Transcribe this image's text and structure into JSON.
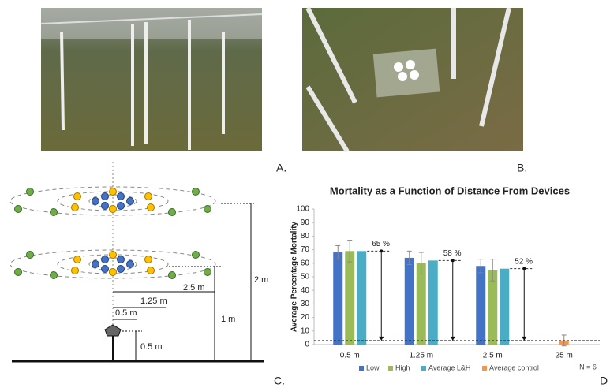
{
  "panels": {
    "a": "A.",
    "b": "B.",
    "c": "C.",
    "d": "D"
  },
  "diagram": {
    "heights": [
      "2 m",
      "1 m",
      "0.5 m"
    ],
    "radii": [
      "2.5 m",
      "1.25 m",
      "0.5 m"
    ]
  },
  "chart_data": {
    "type": "bar",
    "title": "Mortality as a Function of Distance From Devices",
    "y_label": "Average Percentage Mortality",
    "categories": [
      "0.5 m",
      "1.25 m",
      "2.5 m",
      "25  m"
    ],
    "series": [
      {
        "name": "Low",
        "color": "#4472c4",
        "values": [
          68,
          64,
          58,
          null
        ],
        "errors": [
          5,
          5,
          5,
          null
        ]
      },
      {
        "name": "High",
        "color": "#9bbb59",
        "values": [
          69,
          60,
          55,
          null
        ],
        "errors": [
          8,
          8,
          8,
          null
        ]
      },
      {
        "name": "Average L&H",
        "color": "#4bacc6",
        "values": [
          69,
          62,
          56,
          null
        ]
      },
      {
        "name": "Average control",
        "color": "#f79646",
        "values": [
          null,
          null,
          null,
          3
        ],
        "errors": [
          null,
          null,
          null,
          4
        ]
      }
    ],
    "ylim": [
      0,
      100
    ],
    "yticks": [
      0,
      10,
      20,
      30,
      40,
      50,
      60,
      70,
      80,
      90,
      100
    ],
    "annotations": [
      "65 %",
      "58 %",
      "52 %"
    ],
    "note": "N = 6",
    "legend": "bottom"
  }
}
